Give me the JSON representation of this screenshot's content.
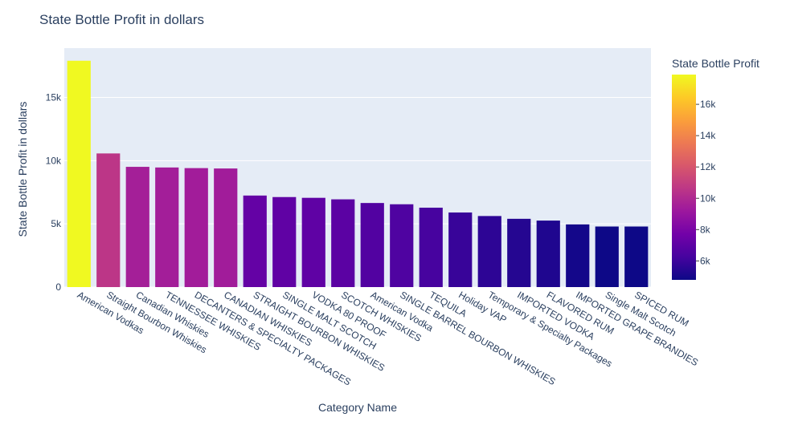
{
  "chart_data": {
    "type": "bar",
    "title": "State Bottle Profit in dollars",
    "xlabel": "Category Name",
    "ylabel": "State Bottle Profit in dollars",
    "ylim": [
      0,
      18900
    ],
    "yticks": [
      0,
      5000,
      10000,
      15000
    ],
    "ytick_labels": [
      "0",
      "5k",
      "10k",
      "15k"
    ],
    "categories": [
      "American Vodkas",
      "Straight Bourbon Whiskies",
      "Canadian Whiskies",
      "TENNESSEE WHISKIES",
      "DECANTERS & SPECIALTY PACKAGES",
      "CANADIAN WHISKIES",
      "STRAIGHT BOURBON WHISKIES",
      "SINGLE MALT SCOTCH",
      "VODKA 80 PROOF",
      "SCOTCH WHISKIES",
      "American Vodka",
      "SINGLE BARREL BOURBON WHISKIES",
      "TEQUILA",
      "Holiday VAP",
      "Temporary & Specialty Packages",
      "IMPORTED VODKA",
      "FLAVORED RUM",
      "IMPORTED GRAPE BRANDIES",
      "Single Malt Scotch",
      "SPICED RUM"
    ],
    "values": [
      17900,
      10570,
      9510,
      9460,
      9410,
      9380,
      7240,
      7120,
      7060,
      6940,
      6650,
      6550,
      6280,
      5900,
      5620,
      5400,
      5260,
      4960,
      4790,
      4790
    ],
    "colorbar": {
      "title": "State Bottle Profit",
      "cmin": 4790,
      "cmax": 17900,
      "ticks": [
        6000,
        8000,
        10000,
        12000,
        14000,
        16000
      ],
      "tick_labels": [
        "6k",
        "8k",
        "10k",
        "12k",
        "14k",
        "16k"
      ],
      "colorscale": [
        "#0d0887",
        "#46039f",
        "#7201a8",
        "#9c179e",
        "#bd3786",
        "#d8576b",
        "#ed7953",
        "#fb9f3a",
        "#fdca26",
        "#f0f921"
      ]
    },
    "plot_bg": "#e5ecf6",
    "grid": true
  }
}
